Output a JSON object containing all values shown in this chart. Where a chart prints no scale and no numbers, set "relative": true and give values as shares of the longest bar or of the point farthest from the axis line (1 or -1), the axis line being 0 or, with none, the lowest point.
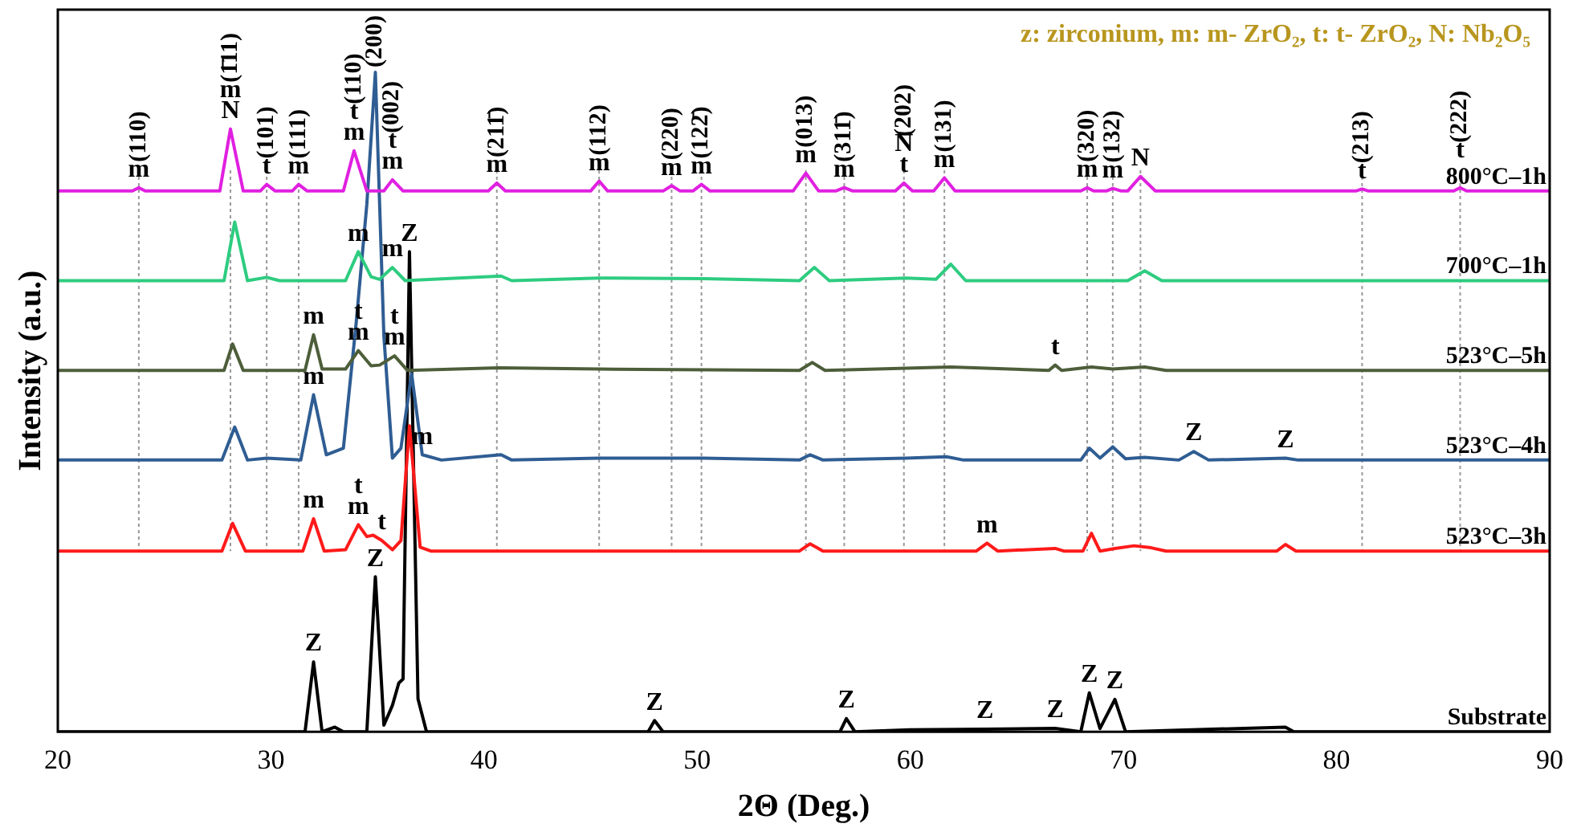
{
  "chart_data": {
    "type": "line",
    "relative": true,
    "xlabel": "2Θ (Deg.)",
    "ylabel": "Intensity (a.u.)",
    "xlim": [
      20,
      90
    ],
    "xticks": [
      20,
      30,
      40,
      50,
      60,
      70,
      80,
      90
    ],
    "grid": false,
    "legend": false,
    "marker": "none",
    "line_style": "solid",
    "series": [
      {
        "name": "800°C–1h",
        "color": "#e020e0",
        "x": [
          20,
          23.5,
          23.8,
          24.1,
          27.6,
          28.1,
          28.7,
          29.5,
          29.8,
          30.2,
          31.0,
          31.3,
          31.7,
          33.4,
          33.9,
          34.5,
          35.3,
          35.7,
          36.2,
          40.2,
          40.6,
          41.0,
          45.0,
          45.4,
          45.8,
          48.4,
          48.8,
          49.2,
          49.8,
          50.2,
          50.6,
          54.5,
          55.1,
          55.7,
          56.5,
          56.9,
          57.3,
          59.3,
          59.7,
          60.1,
          61.1,
          61.6,
          62.1,
          68.0,
          68.3,
          68.6,
          69.2,
          69.5,
          69.9,
          70.2,
          70.8,
          71.5,
          80.9,
          81.2,
          81.5,
          85.5,
          85.8,
          86.1,
          90
        ],
        "values": [
          0.82,
          0.82,
          0.825,
          0.82,
          0.82,
          0.914,
          0.82,
          0.82,
          0.83,
          0.82,
          0.82,
          0.83,
          0.82,
          0.82,
          0.881,
          0.82,
          0.82,
          0.837,
          0.82,
          0.82,
          0.832,
          0.82,
          0.82,
          0.835,
          0.82,
          0.82,
          0.828,
          0.82,
          0.82,
          0.83,
          0.82,
          0.82,
          0.847,
          0.82,
          0.82,
          0.825,
          0.82,
          0.82,
          0.832,
          0.82,
          0.82,
          0.84,
          0.82,
          0.82,
          0.825,
          0.82,
          0.82,
          0.824,
          0.82,
          0.82,
          0.842,
          0.82,
          0.82,
          0.823,
          0.82,
          0.82,
          0.825,
          0.82,
          0.82
        ]
      },
      {
        "name": "700°C–1h",
        "color": "#2ecc80",
        "x": [
          20,
          27.8,
          28.3,
          28.9,
          29.8,
          30.4,
          33.5,
          34.1,
          34.7,
          35.1,
          35.7,
          36.3,
          40.8,
          41.3,
          45.4,
          50.3,
          54.8,
          55.5,
          56.2,
          59.8,
          61.2,
          61.9,
          62.6,
          70.2,
          71,
          71.8,
          90
        ],
        "values": [
          0.684,
          0.684,
          0.773,
          0.684,
          0.689,
          0.684,
          0.684,
          0.728,
          0.69,
          0.686,
          0.704,
          0.684,
          0.691,
          0.684,
          0.688,
          0.687,
          0.684,
          0.704,
          0.684,
          0.688,
          0.686,
          0.709,
          0.684,
          0.684,
          0.699,
          0.684,
          0.684
        ]
      },
      {
        "name": "523°C–5h",
        "color": "#4d5e3a",
        "x": [
          20,
          27.8,
          28.2,
          28.7,
          31.6,
          32,
          32.4,
          33.5,
          34.1,
          34.7,
          35.1,
          35.8,
          36.4,
          40.7,
          45.4,
          54.8,
          55.4,
          56,
          61.9,
          66.5,
          66.8,
          67.1,
          68.5,
          69.5,
          71,
          72,
          90
        ],
        "values": [
          0.548,
          0.548,
          0.588,
          0.548,
          0.548,
          0.602,
          0.55,
          0.55,
          0.578,
          0.555,
          0.556,
          0.57,
          0.548,
          0.552,
          0.55,
          0.548,
          0.56,
          0.548,
          0.553,
          0.548,
          0.556,
          0.548,
          0.553,
          0.55,
          0.553,
          0.548,
          0.548
        ]
      },
      {
        "name": "523°C–4h",
        "color": "#2f5d93",
        "x": [
          20,
          27.7,
          28.3,
          28.9,
          29.8,
          31.4,
          32.0,
          32.6,
          33.4,
          34.0,
          34.5,
          34.9,
          35.3,
          35.7,
          36.1,
          36.6,
          37.1,
          38,
          40.8,
          41.3,
          45.4,
          50.3,
          54.8,
          55.3,
          55.9,
          59.8,
          61.7,
          62.5,
          68.0,
          68.4,
          68.9,
          69.5,
          70.1,
          71,
          72.6,
          73.3,
          74,
          77.6,
          78.2,
          90
        ],
        "values": [
          0.412,
          0.412,
          0.462,
          0.412,
          0.415,
          0.412,
          0.511,
          0.42,
          0.43,
          0.62,
          0.8,
          1,
          0.6,
          0.415,
          0.43,
          0.543,
          0.42,
          0.412,
          0.42,
          0.412,
          0.415,
          0.415,
          0.412,
          0.42,
          0.412,
          0.415,
          0.417,
          0.412,
          0.412,
          0.43,
          0.415,
          0.432,
          0.414,
          0.416,
          0.412,
          0.425,
          0.412,
          0.415,
          0.412,
          0.412
        ]
      },
      {
        "name": "523°C–3h",
        "color": "#ff1a1a",
        "x": [
          20,
          27.7,
          28.2,
          28.8,
          31.5,
          32,
          32.5,
          33.5,
          34.1,
          34.5,
          34.8,
          35.2,
          35.7,
          36.1,
          36.5,
          37.0,
          37.5,
          54.8,
          55.3,
          55.9,
          63.1,
          63.6,
          64.1,
          66.8,
          67.2,
          68.1,
          68.5,
          68.9,
          69.6,
          70.5,
          71.3,
          72,
          77.2,
          77.6,
          78.1,
          90
        ],
        "values": [
          0.274,
          0.274,
          0.316,
          0.274,
          0.274,
          0.323,
          0.274,
          0.276,
          0.314,
          0.296,
          0.298,
          0.29,
          0.276,
          0.29,
          0.464,
          0.28,
          0.274,
          0.274,
          0.285,
          0.274,
          0.274,
          0.286,
          0.274,
          0.278,
          0.274,
          0.274,
          0.301,
          0.274,
          0.278,
          0.282,
          0.279,
          0.274,
          0.274,
          0.284,
          0.274,
          0.274
        ]
      },
      {
        "name": "Substrate",
        "color": "#000000",
        "x": [
          20,
          31.6,
          32,
          32.4,
          33,
          33.4,
          34.5,
          34.9,
          35.3,
          35.7,
          36.0,
          36.2,
          36.5,
          36.9,
          37.3,
          47.7,
          48,
          48.4,
          56.7,
          57,
          57.4,
          60,
          63.5,
          66.8,
          68.0,
          68.4,
          68.9,
          69.6,
          70.1,
          77.6,
          78,
          90
        ],
        "values": [
          0,
          0,
          0.106,
          0,
          0.007,
          0,
          0,
          0.235,
          0.01,
          0.04,
          0.074,
          0.08,
          0.728,
          0.05,
          0,
          0,
          0.017,
          0,
          0,
          0.02,
          0,
          0.003,
          0.004,
          0.005,
          0,
          0.059,
          0.005,
          0.049,
          0,
          0.007,
          0,
          0
        ]
      }
    ],
    "ref_lines": [
      {
        "axis": "x",
        "value": 23.8,
        "color": "#999999",
        "line_style": "dotted"
      },
      {
        "axis": "x",
        "value": 28.1,
        "color": "#999999",
        "line_style": "dotted"
      },
      {
        "axis": "x",
        "value": 29.8,
        "color": "#999999",
        "line_style": "dotted"
      },
      {
        "axis": "x",
        "value": 31.3,
        "color": "#999999",
        "line_style": "dotted"
      },
      {
        "axis": "x",
        "value": 40.6,
        "color": "#999999",
        "line_style": "dotted"
      },
      {
        "axis": "x",
        "value": 45.4,
        "color": "#999999",
        "line_style": "dotted"
      },
      {
        "axis": "x",
        "value": 48.8,
        "color": "#999999",
        "line_style": "dotted"
      },
      {
        "axis": "x",
        "value": 50.2,
        "color": "#999999",
        "line_style": "dotted"
      },
      {
        "axis": "x",
        "value": 55.1,
        "color": "#999999",
        "line_style": "dotted"
      },
      {
        "axis": "x",
        "value": 56.9,
        "color": "#999999",
        "line_style": "dotted"
      },
      {
        "axis": "x",
        "value": 59.7,
        "color": "#999999",
        "line_style": "dotted"
      },
      {
        "axis": "x",
        "value": 61.6,
        "color": "#999999",
        "line_style": "dotted"
      },
      {
        "axis": "x",
        "value": 68.3,
        "color": "#999999",
        "line_style": "dotted"
      },
      {
        "axis": "x",
        "value": 69.5,
        "color": "#999999",
        "line_style": "dotted"
      },
      {
        "axis": "x",
        "value": 70.8,
        "color": "#999999",
        "line_style": "dotted"
      },
      {
        "axis": "x",
        "value": 81.2,
        "color": "#999999",
        "line_style": "dotted"
      },
      {
        "axis": "x",
        "value": 85.8,
        "color": "#999999",
        "line_style": "dotted"
      }
    ],
    "annotations": [
      "z: zirconium, m: m- ZrO₂, t: t- ZrO₂, N: Nb₂O₅",
      {
        "text": "m",
        "x": 23.8,
        "y": 0.825
      },
      {
        "text": "(110)",
        "x": 23.8,
        "y": 0.825
      },
      {
        "text": "N",
        "x": 28.1,
        "y": 0.914
      },
      {
        "text": "m",
        "x": 28.1,
        "y": 0.914
      },
      {
        "text": "(1̄11)",
        "x": 28.1,
        "y": 0.914
      },
      {
        "text": "t",
        "x": 29.8,
        "y": 0.83
      },
      {
        "text": "(101)",
        "x": 29.8,
        "y": 0.83
      },
      {
        "text": "m",
        "x": 31.3,
        "y": 0.83
      },
      {
        "text": "(111)",
        "x": 31.3,
        "y": 0.83
      },
      {
        "text": "m",
        "x": 33.9,
        "y": 0.881
      },
      {
        "text": "t",
        "x": 33.9,
        "y": 0.881
      },
      {
        "text": "(110)",
        "x": 33.9,
        "y": 0.881
      },
      {
        "text": "(200)",
        "x": 34.9,
        "y": 1
      },
      {
        "text": "m",
        "x": 35.7,
        "y": 0.837
      },
      {
        "text": "t",
        "x": 35.7,
        "y": 0.837
      },
      {
        "text": "(002)",
        "x": 35.7,
        "y": 0.837
      },
      {
        "text": "m",
        "x": 40.6,
        "y": 0.832
      },
      {
        "text": "(211̄)",
        "x": 40.6,
        "y": 0.832
      },
      {
        "text": "m",
        "x": 45.4,
        "y": 0.835
      },
      {
        "text": "(112)",
        "x": 45.4,
        "y": 0.835
      },
      {
        "text": "m",
        "x": 48.8,
        "y": 0.828
      },
      {
        "text": "(220)",
        "x": 48.8,
        "y": 0.828
      },
      {
        "text": "m",
        "x": 50.2,
        "y": 0.83
      },
      {
        "text": "(122̄)",
        "x": 50.2,
        "y": 0.83
      },
      {
        "text": "m",
        "x": 55.1,
        "y": 0.847
      },
      {
        "text": "(013)",
        "x": 55.1,
        "y": 0.847
      },
      {
        "text": "m",
        "x": 56.9,
        "y": 0.825
      },
      {
        "text": "(311̄)",
        "x": 56.9,
        "y": 0.825
      },
      {
        "text": "t",
        "x": 59.7,
        "y": 0.832
      },
      {
        "text": "N",
        "x": 59.7,
        "y": 0.832
      },
      {
        "text": "(202)",
        "x": 59.7,
        "y": 0.832
      },
      {
        "text": "m",
        "x": 61.6,
        "y": 0.84
      },
      {
        "text": "(131)",
        "x": 61.6,
        "y": 0.84
      },
      {
        "text": "m",
        "x": 68.3,
        "y": 0.825
      },
      {
        "text": "(320)",
        "x": 68.3,
        "y": 0.825
      },
      {
        "text": "m",
        "x": 69.5,
        "y": 0.824
      },
      {
        "text": "(132)",
        "x": 69.5,
        "y": 0.824
      },
      {
        "text": "N",
        "x": 70.8,
        "y": 0.842
      },
      {
        "text": "t",
        "x": 81.2,
        "y": 0.823
      },
      {
        "text": "(213)",
        "x": 81.2,
        "y": 0.823
      },
      {
        "text": "t",
        "x": 85.8,
        "y": 0.825
      },
      {
        "text": "(222)",
        "x": 85.8,
        "y": 0.825
      },
      {
        "text": "m",
        "x": 34.1,
        "y": 0.728
      },
      {
        "text": "m",
        "x": 35.7,
        "y": 0.704
      },
      {
        "text": "Z",
        "x": 36.5,
        "y": 0.728
      },
      {
        "text": "m",
        "x": 32,
        "y": 0.602
      },
      {
        "text": "m",
        "x": 34.1,
        "y": 0.578
      },
      {
        "text": "t",
        "x": 34.1,
        "y": 0.578
      },
      {
        "text": "m",
        "x": 35.8,
        "y": 0.57
      },
      {
        "text": "t",
        "x": 35.8,
        "y": 0.57
      },
      {
        "text": "t",
        "x": 66.8,
        "y": 0.556
      },
      {
        "text": "m",
        "x": 32.0,
        "y": 0.511
      },
      {
        "text": "m",
        "x": 37.1,
        "y": 0.42
      },
      {
        "text": "Z",
        "x": 73.3,
        "y": 0.425
      },
      {
        "text": "Z",
        "x": 77.6,
        "y": 0.415
      },
      {
        "text": "m",
        "x": 32,
        "y": 0.323
      },
      {
        "text": "m",
        "x": 34.1,
        "y": 0.314
      },
      {
        "text": "t",
        "x": 34.1,
        "y": 0.314
      },
      {
        "text": "t",
        "x": 35.2,
        "y": 0.29
      },
      {
        "text": "m",
        "x": 63.6,
        "y": 0.286
      },
      {
        "text": "Z",
        "x": 32,
        "y": 0.106
      },
      {
        "text": "Z",
        "x": 34.9,
        "y": 0.235
      },
      {
        "text": "Z",
        "x": 48,
        "y": 0.017
      },
      {
        "text": "Z",
        "x": 57,
        "y": 0.02
      },
      {
        "text": "Z",
        "x": 63.5,
        "y": 0.004
      },
      {
        "text": "Z",
        "x": 66.8,
        "y": 0.005
      },
      {
        "text": "Z",
        "x": 68.4,
        "y": 0.059
      },
      {
        "text": "Z",
        "x": 69.6,
        "y": 0.049
      }
    ]
  }
}
